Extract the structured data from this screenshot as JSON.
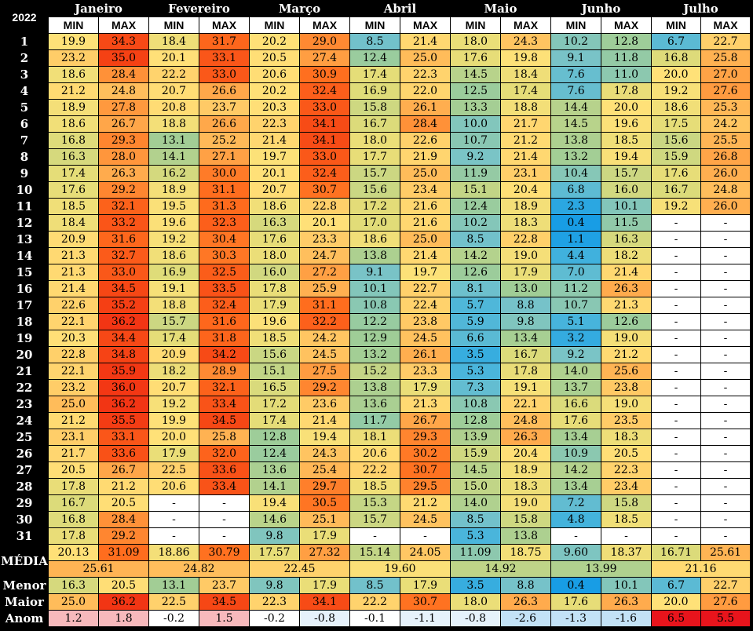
{
  "title": "2022",
  "sub_min": "MIN",
  "sub_max": "MAX",
  "months": [
    "Janeiro",
    "Fevereiro",
    "Março",
    "Abril",
    "Maio",
    "Junho",
    "Julho"
  ],
  "days": [
    "1",
    "2",
    "3",
    "4",
    "5",
    "6",
    "7",
    "8",
    "9",
    "10",
    "11",
    "12",
    "13",
    "14",
    "15",
    "16",
    "17",
    "18",
    "19",
    "20",
    "21",
    "22",
    "23",
    "24",
    "25",
    "26",
    "27",
    "28",
    "29",
    "30",
    "31"
  ],
  "data": [
    [
      "19.9",
      "34.3",
      "18.4",
      "31.7",
      "20.2",
      "29.0",
      "8.5",
      "21.4",
      "18.0",
      "24.3",
      "10.2",
      "12.8",
      "6.7",
      "22.7"
    ],
    [
      "23.2",
      "35.0",
      "20.1",
      "33.1",
      "20.5",
      "27.4",
      "12.4",
      "25.0",
      "17.6",
      "19.8",
      "9.1",
      "11.8",
      "16.8",
      "25.8"
    ],
    [
      "18.6",
      "28.4",
      "22.2",
      "33.0",
      "20.6",
      "30.9",
      "17.4",
      "22.3",
      "14.5",
      "18.4",
      "7.6",
      "11.0",
      "20.0",
      "27.0"
    ],
    [
      "21.2",
      "24.8",
      "20.7",
      "26.6",
      "20.2",
      "32.4",
      "16.9",
      "22.0",
      "12.5",
      "17.4",
      "7.6",
      "17.8",
      "19.2",
      "27.6"
    ],
    [
      "18.9",
      "27.8",
      "20.8",
      "23.7",
      "20.3",
      "33.0",
      "15.8",
      "26.1",
      "13.3",
      "18.8",
      "14.4",
      "20.0",
      "18.6",
      "25.3"
    ],
    [
      "18.6",
      "26.7",
      "18.8",
      "26.6",
      "22.3",
      "34.1",
      "16.7",
      "28.4",
      "10.0",
      "21.7",
      "14.5",
      "19.6",
      "17.5",
      "24.2"
    ],
    [
      "16.8",
      "29.3",
      "13.1",
      "25.2",
      "21.4",
      "34.1",
      "18.0",
      "22.6",
      "10.7",
      "21.2",
      "13.8",
      "18.5",
      "15.6",
      "25.5"
    ],
    [
      "16.3",
      "28.0",
      "14.1",
      "27.1",
      "19.7",
      "33.0",
      "17.7",
      "21.9",
      "9.2",
      "21.4",
      "13.2",
      "19.4",
      "15.9",
      "26.8"
    ],
    [
      "17.4",
      "26.3",
      "16.2",
      "30.0",
      "20.1",
      "32.4",
      "15.7",
      "25.0",
      "11.9",
      "23.1",
      "10.4",
      "15.7",
      "17.6",
      "26.0"
    ],
    [
      "17.6",
      "29.2",
      "18.9",
      "31.1",
      "20.7",
      "30.7",
      "15.6",
      "23.4",
      "15.1",
      "20.4",
      "6.8",
      "16.0",
      "16.7",
      "24.8"
    ],
    [
      "18.5",
      "32.1",
      "19.5",
      "31.3",
      "18.6",
      "22.8",
      "17.2",
      "21.6",
      "12.4",
      "18.9",
      "2.3",
      "10.1",
      "19.2",
      "26.0"
    ],
    [
      "18.4",
      "33.2",
      "19.6",
      "32.3",
      "16.3",
      "20.1",
      "17.0",
      "21.6",
      "10.2",
      "18.3",
      "0.4",
      "11.5",
      "-",
      "-"
    ],
    [
      "20.9",
      "31.6",
      "19.2",
      "30.4",
      "17.6",
      "23.3",
      "18.6",
      "25.0",
      "8.5",
      "22.8",
      "1.1",
      "16.3",
      "-",
      "-"
    ],
    [
      "21.3",
      "32.7",
      "18.6",
      "30.3",
      "18.0",
      "24.7",
      "13.8",
      "21.4",
      "14.2",
      "19.0",
      "4.4",
      "18.2",
      "-",
      "-"
    ],
    [
      "21.3",
      "33.0",
      "16.9",
      "32.5",
      "16.0",
      "27.2",
      "9.1",
      "19.7",
      "12.6",
      "17.9",
      "7.0",
      "21.4",
      "-",
      "-"
    ],
    [
      "21.4",
      "34.5",
      "19.1",
      "33.5",
      "17.8",
      "25.9",
      "10.1",
      "22.7",
      "8.1",
      "13.0",
      "11.2",
      "26.3",
      "-",
      "-"
    ],
    [
      "22.6",
      "35.2",
      "18.8",
      "32.4",
      "17.9",
      "31.1",
      "10.8",
      "22.4",
      "5.7",
      "8.8",
      "10.7",
      "21.3",
      "-",
      "-"
    ],
    [
      "22.1",
      "36.2",
      "15.7",
      "31.6",
      "19.6",
      "32.2",
      "12.2",
      "23.8",
      "5.9",
      "9.8",
      "5.1",
      "12.6",
      "-",
      "-"
    ],
    [
      "20.3",
      "34.4",
      "17.4",
      "31.8",
      "18.5",
      "24.2",
      "12.9",
      "24.5",
      "6.6",
      "13.4",
      "3.2",
      "19.0",
      "-",
      "-"
    ],
    [
      "22.8",
      "34.8",
      "20.9",
      "34.2",
      "15.6",
      "24.5",
      "13.2",
      "26.1",
      "3.5",
      "16.7",
      "9.2",
      "21.2",
      "-",
      "-"
    ],
    [
      "22.1",
      "35.9",
      "18.2",
      "28.9",
      "15.1",
      "27.5",
      "15.2",
      "23.3",
      "5.3",
      "17.8",
      "14.0",
      "25.6",
      "-",
      "-"
    ],
    [
      "23.2",
      "36.0",
      "20.7",
      "32.1",
      "16.5",
      "29.2",
      "13.8",
      "17.9",
      "7.3",
      "19.1",
      "13.7",
      "23.8",
      "-",
      "-"
    ],
    [
      "25.0",
      "36.2",
      "19.2",
      "33.4",
      "17.2",
      "23.6",
      "13.6",
      "21.3",
      "10.8",
      "22.1",
      "16.6",
      "19.0",
      "-",
      "-"
    ],
    [
      "21.2",
      "35.5",
      "19.9",
      "34.5",
      "17.4",
      "21.4",
      "11.7",
      "26.7",
      "12.8",
      "24.8",
      "17.6",
      "23.5",
      "-",
      "-"
    ],
    [
      "23.1",
      "33.1",
      "20.0",
      "25.8",
      "12.8",
      "19.4",
      "18.1",
      "29.3",
      "13.9",
      "26.3",
      "13.4",
      "18.3",
      "-",
      "-"
    ],
    [
      "21.7",
      "33.6",
      "17.9",
      "32.0",
      "12.4",
      "24.3",
      "20.6",
      "30.2",
      "15.9",
      "20.4",
      "10.9",
      "20.5",
      "-",
      "-"
    ],
    [
      "20.5",
      "26.7",
      "22.5",
      "33.6",
      "13.6",
      "25.4",
      "22.2",
      "30.7",
      "14.5",
      "18.9",
      "14.2",
      "22.3",
      "-",
      "-"
    ],
    [
      "17.8",
      "21.2",
      "20.6",
      "33.4",
      "14.1",
      "29.7",
      "18.5",
      "29.5",
      "15.0",
      "18.3",
      "13.4",
      "23.4",
      "-",
      "-"
    ],
    [
      "16.7",
      "20.5",
      "-",
      "-",
      "19.4",
      "30.5",
      "15.3",
      "21.2",
      "14.0",
      "19.0",
      "7.2",
      "15.8",
      "-",
      "-"
    ],
    [
      "16.8",
      "28.4",
      "-",
      "-",
      "14.6",
      "25.1",
      "15.7",
      "24.5",
      "8.5",
      "15.8",
      "4.8",
      "18.5",
      "-",
      "-"
    ],
    [
      "17.8",
      "29.2",
      "-",
      "-",
      "9.8",
      "17.9",
      "-",
      "-",
      "5.3",
      "13.8",
      "-",
      "-",
      "-",
      "-"
    ]
  ],
  "summary": {
    "media_label": "MÉDIA",
    "media_min_max": [
      "20.13",
      "31.09",
      "18.86",
      "30.79",
      "17.57",
      "27.32",
      "15.14",
      "24.05",
      "11.09",
      "18.75",
      "9.60",
      "18.37",
      "16.71",
      "25.61"
    ],
    "media_month": [
      "25.61",
      "24.82",
      "22.45",
      "19.60",
      "14.92",
      "13.99",
      "21.16"
    ],
    "menor_label": "Menor",
    "menor": [
      "16.3",
      "20.5",
      "13.1",
      "23.7",
      "9.8",
      "17.9",
      "8.5",
      "17.9",
      "3.5",
      "8.8",
      "0.4",
      "10.1",
      "6.7",
      "22.7"
    ],
    "maior_label": "Maior",
    "maior": [
      "25.0",
      "36.2",
      "22.5",
      "34.5",
      "22.3",
      "34.1",
      "22.2",
      "30.7",
      "18.0",
      "26.3",
      "17.6",
      "26.3",
      "20.0",
      "27.6"
    ],
    "anom_label": "Anom",
    "anom": [
      "1.2",
      "1.8",
      "-0.2",
      "1.5",
      "-0.2",
      "-0.8",
      "-0.1",
      "-1.1",
      "-0.8",
      "-2.6",
      "-1.3",
      "-1.6",
      "6.5",
      "5.5"
    ]
  }
}
